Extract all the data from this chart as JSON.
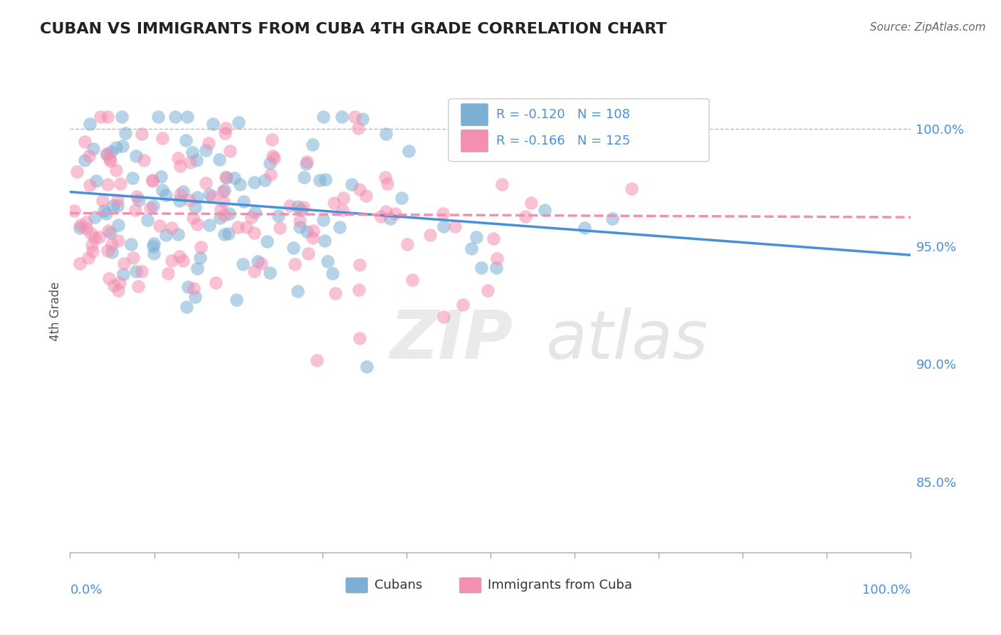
{
  "title": "CUBAN VS IMMIGRANTS FROM CUBA 4TH GRADE CORRELATION CHART",
  "source": "Source: ZipAtlas.com",
  "ylabel": "4th Grade",
  "ytick_labels": [
    "100.0%",
    "95.0%",
    "90.0%",
    "85.0%"
  ],
  "ytick_values": [
    1.0,
    0.95,
    0.9,
    0.85
  ],
  "cubans_color": "#7bafd4",
  "immigrants_color": "#f48fb1",
  "cubans_R": -0.12,
  "immigrants_R": -0.166,
  "cubans_N": 108,
  "immigrants_N": 125,
  "xmin": 0.0,
  "xmax": 1.0,
  "ymin": 0.82,
  "ymax": 1.025,
  "background_color": "#ffffff",
  "title_color": "#222222",
  "axis_label_color": "#555555",
  "tick_color": "#4a90d9",
  "dashed_grid_color": "#bbbbbb",
  "trend_blue_color": "#4a90d9",
  "trend_pink_color": "#f48fb1",
  "watermark_zip": "ZIP",
  "watermark_atlas": "atlas",
  "cubans_seed": 42,
  "immigrants_seed": 99
}
